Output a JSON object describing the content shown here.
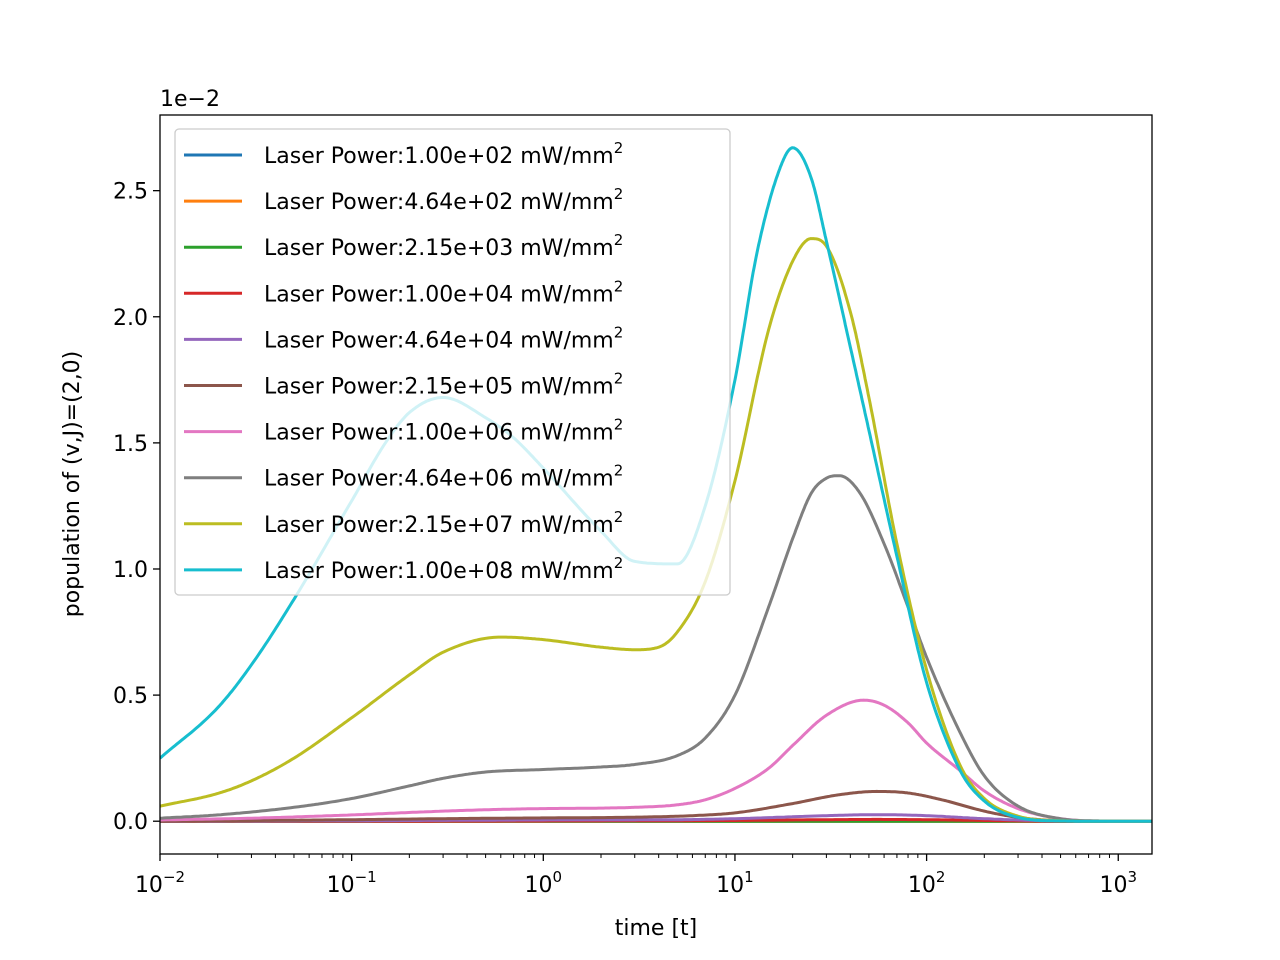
{
  "chart_data": {
    "type": "line",
    "xscale": "log",
    "xlim": [
      0.01,
      1500
    ],
    "ylim": [
      -0.13,
      2.8
    ],
    "offset_text": "1e−2",
    "xlabel": "time [t]",
    "ylabel": "population of (v,J)=(2,0)",
    "grid": false,
    "legend_position": "upper left",
    "yticks": [
      {
        "value": 0.0,
        "label": "0.0"
      },
      {
        "value": 0.5,
        "label": "0.5"
      },
      {
        "value": 1.0,
        "label": "1.0"
      },
      {
        "value": 1.5,
        "label": "1.5"
      },
      {
        "value": 2.0,
        "label": "2.0"
      },
      {
        "value": 2.5,
        "label": "2.5"
      }
    ],
    "xticks": [
      {
        "value": 0.01,
        "base": "10",
        "exp": "−2"
      },
      {
        "value": 0.1,
        "base": "10",
        "exp": "−1"
      },
      {
        "value": 1,
        "base": "10",
        "exp": "0"
      },
      {
        "value": 10,
        "base": "10",
        "exp": "1"
      },
      {
        "value": 100,
        "base": "10",
        "exp": "2"
      },
      {
        "value": 1000,
        "base": "10",
        "exp": "3"
      }
    ],
    "series": [
      {
        "name": "Laser Power:1.00e+02 mW/mm",
        "sup": "2",
        "color": "#1f77b4",
        "x": [
          0.01,
          0.1,
          1,
          10,
          50,
          200,
          500,
          1500
        ],
        "y": [
          0.0,
          0.0,
          0.0,
          0.0,
          0.0,
          0.0,
          0.0,
          0.0
        ]
      },
      {
        "name": "Laser Power:4.64e+02 mW/mm",
        "sup": "2",
        "color": "#ff7f0e",
        "x": [
          0.01,
          0.1,
          1,
          10,
          50,
          200,
          500,
          1500
        ],
        "y": [
          0.0,
          0.0,
          0.0,
          0.0,
          0.0,
          0.0,
          0.0,
          0.0
        ]
      },
      {
        "name": "Laser Power:2.15e+03 mW/mm",
        "sup": "2",
        "color": "#2ca02c",
        "x": [
          0.01,
          0.1,
          1,
          10,
          50,
          200,
          500,
          1500
        ],
        "y": [
          0.0,
          0.0,
          0.0,
          0.0,
          0.0,
          0.0,
          0.0,
          0.0
        ]
      },
      {
        "name": "Laser Power:1.00e+04 mW/mm",
        "sup": "2",
        "color": "#d62728",
        "x": [
          0.01,
          0.1,
          1,
          10,
          30,
          55,
          100,
          200,
          500,
          1500
        ],
        "y": [
          0.0,
          0.0,
          0.001,
          0.003,
          0.006,
          0.007,
          0.006,
          0.003,
          0.0,
          0.0
        ]
      },
      {
        "name": "Laser Power:4.64e+04 mW/mm",
        "sup": "2",
        "color": "#9467bd",
        "x": [
          0.01,
          0.1,
          0.5,
          1,
          5,
          10,
          30,
          55,
          100,
          200,
          500,
          1500
        ],
        "y": [
          0.0,
          0.002,
          0.004,
          0.005,
          0.006,
          0.01,
          0.022,
          0.026,
          0.022,
          0.01,
          0.001,
          0.0
        ]
      },
      {
        "name": "Laser Power:2.15e+05 mW/mm",
        "sup": "2",
        "color": "#8c564b",
        "x": [
          0.01,
          0.05,
          0.1,
          0.3,
          0.6,
          1,
          3,
          6,
          10,
          20,
          35,
          55,
          80,
          120,
          200,
          300,
          500,
          1000,
          1500
        ],
        "y": [
          0.0,
          0.004,
          0.006,
          0.01,
          0.012,
          0.013,
          0.016,
          0.022,
          0.033,
          0.07,
          0.105,
          0.118,
          0.112,
          0.085,
          0.04,
          0.015,
          0.002,
          0.0,
          0.0
        ]
      },
      {
        "name": "Laser Power:1.00e+06 mW/mm",
        "sup": "2",
        "color": "#e377c2",
        "x": [
          0.01,
          0.03,
          0.1,
          0.3,
          0.6,
          1,
          2,
          3,
          5,
          7,
          10,
          15,
          20,
          30,
          47,
          60,
          80,
          100,
          150,
          200,
          300,
          500,
          800,
          1500
        ],
        "y": [
          0.005,
          0.012,
          0.025,
          0.04,
          0.047,
          0.05,
          0.052,
          0.055,
          0.065,
          0.085,
          0.13,
          0.21,
          0.3,
          0.42,
          0.48,
          0.46,
          0.39,
          0.31,
          0.2,
          0.12,
          0.05,
          0.01,
          0.001,
          0.0
        ]
      },
      {
        "name": "Laser Power:4.64e+06 mW/mm",
        "sup": "2",
        "color": "#7f7f7f",
        "x": [
          0.01,
          0.02,
          0.05,
          0.1,
          0.2,
          0.3,
          0.5,
          1,
          2,
          3,
          5,
          7,
          10,
          15,
          20,
          25,
          30,
          35,
          45,
          60,
          80,
          100,
          150,
          200,
          300,
          500,
          800,
          1500
        ],
        "y": [
          0.012,
          0.025,
          0.055,
          0.09,
          0.14,
          0.17,
          0.195,
          0.205,
          0.215,
          0.225,
          0.26,
          0.33,
          0.5,
          0.85,
          1.12,
          1.3,
          1.36,
          1.37,
          1.3,
          1.1,
          0.85,
          0.65,
          0.35,
          0.18,
          0.06,
          0.01,
          0.001,
          0.0
        ]
      },
      {
        "name": "Laser Power:2.15e+07 mW/mm",
        "sup": "2",
        "color": "#bcbd22",
        "x": [
          0.01,
          0.02,
          0.03,
          0.05,
          0.1,
          0.2,
          0.3,
          0.6,
          1,
          2,
          3,
          4,
          5,
          7,
          10,
          15,
          20,
          25,
          30,
          40,
          50,
          70,
          100,
          150,
          200,
          300,
          500,
          800,
          1500
        ],
        "y": [
          0.06,
          0.11,
          0.16,
          0.25,
          0.41,
          0.58,
          0.67,
          0.73,
          0.72,
          0.69,
          0.68,
          0.69,
          0.75,
          0.95,
          1.35,
          1.95,
          2.22,
          2.31,
          2.28,
          2.02,
          1.68,
          1.1,
          0.6,
          0.22,
          0.09,
          0.02,
          0.002,
          0.0,
          0.0
        ]
      },
      {
        "name": "Laser Power:1.00e+08 mW/mm",
        "sup": "2",
        "color": "#17becf",
        "x": [
          0.01,
          0.02,
          0.03,
          0.05,
          0.1,
          0.15,
          0.2,
          0.3,
          0.5,
          0.7,
          1,
          2,
          3,
          5,
          7,
          10,
          13,
          17,
          20,
          25,
          30,
          40,
          50,
          70,
          100,
          150,
          200,
          300,
          500,
          800,
          1500
        ],
        "y": [
          0.25,
          0.45,
          0.62,
          0.88,
          1.27,
          1.5,
          1.62,
          1.68,
          1.6,
          1.52,
          1.4,
          1.15,
          1.03,
          1.02,
          1.25,
          1.75,
          2.25,
          2.58,
          2.67,
          2.55,
          2.3,
          1.88,
          1.55,
          1.05,
          0.55,
          0.2,
          0.08,
          0.015,
          0.001,
          0.0,
          0.0
        ]
      }
    ]
  }
}
